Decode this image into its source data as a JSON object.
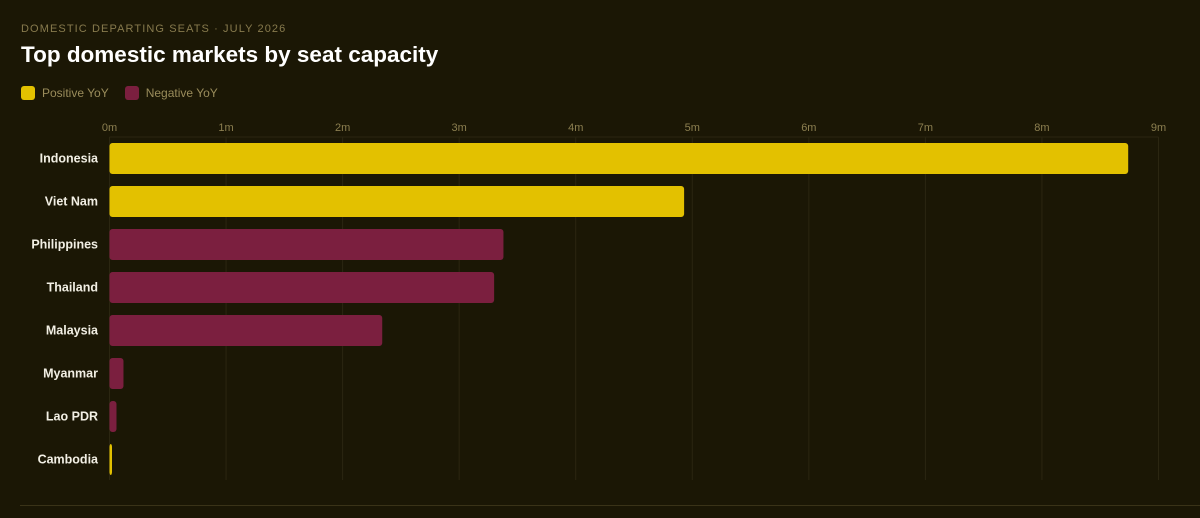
{
  "header": {
    "eyebrow": "DOMESTIC DEPARTING SEATS · JULY 2026",
    "title": "Top domestic markets by seat capacity"
  },
  "legend": {
    "positive_label": "Positive YoY",
    "negative_label": "Negative YoY"
  },
  "colors": {
    "positive": "#e3c100",
    "negative": "#7b1f3f",
    "background": "#1b1705",
    "grid": "#2b2611",
    "tick_text": "#8c7f50",
    "category_text": "#f2efe4"
  },
  "chart_data": {
    "type": "bar",
    "orientation": "horizontal",
    "title": "Top domestic markets by seat capacity",
    "subtitle": "DOMESTIC DEPARTING SEATS · JULY 2026",
    "xlabel": "",
    "ylabel": "",
    "x_unit": "seats",
    "xlim": [
      0,
      9000000
    ],
    "x_ticks": [
      0,
      1000000,
      2000000,
      3000000,
      4000000,
      5000000,
      6000000,
      7000000,
      8000000,
      9000000
    ],
    "x_tick_labels": [
      "0m",
      "1m",
      "2m",
      "3m",
      "4m",
      "5m",
      "6m",
      "7m",
      "8m",
      "9m"
    ],
    "grid": true,
    "legend_position": "top-left",
    "categories": [
      "Indonesia",
      "Viet Nam",
      "Philippines",
      "Thailand",
      "Malaysia",
      "Myanmar",
      "Lao PDR",
      "Cambodia"
    ],
    "values": [
      8740000,
      4930000,
      3380000,
      3300000,
      2340000,
      120000,
      60000,
      20000
    ],
    "yoy_direction": [
      "positive",
      "positive",
      "negative",
      "negative",
      "negative",
      "negative",
      "negative",
      "positive"
    ],
    "series": [
      {
        "name": "Positive YoY",
        "categories": [
          "Indonesia",
          "Viet Nam",
          "Cambodia"
        ]
      },
      {
        "name": "Negative YoY",
        "categories": [
          "Philippines",
          "Thailand",
          "Malaysia",
          "Myanmar",
          "Lao PDR"
        ]
      }
    ]
  }
}
